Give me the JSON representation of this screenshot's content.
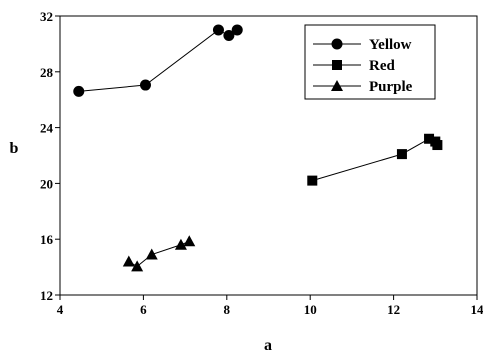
{
  "chart_data": {
    "type": "scatter",
    "title": "",
    "xlabel": "a",
    "ylabel": "b",
    "xlim": [
      4,
      14
    ],
    "ylim": [
      12,
      32
    ],
    "xticks": [
      4,
      6,
      8,
      10,
      12,
      14
    ],
    "yticks": [
      12,
      16,
      20,
      24,
      28,
      32
    ],
    "grid": false,
    "legend_position": "top-right",
    "series": [
      {
        "name": "Yellow",
        "marker": "circle",
        "color": "#000000",
        "points": [
          {
            "x": 4.45,
            "y": 26.6
          },
          {
            "x": 6.05,
            "y": 27.05
          },
          {
            "x": 7.8,
            "y": 31.0
          },
          {
            "x": 8.05,
            "y": 30.6
          },
          {
            "x": 8.25,
            "y": 31.0
          }
        ]
      },
      {
        "name": "Red",
        "marker": "square",
        "color": "#000000",
        "points": [
          {
            "x": 10.05,
            "y": 20.2
          },
          {
            "x": 12.2,
            "y": 22.1
          },
          {
            "x": 12.85,
            "y": 23.2
          },
          {
            "x": 13.0,
            "y": 23.0
          },
          {
            "x": 13.05,
            "y": 22.75
          }
        ]
      },
      {
        "name": "Purple",
        "marker": "triangle",
        "color": "#000000",
        "points": [
          {
            "x": 5.65,
            "y": 14.4
          },
          {
            "x": 5.85,
            "y": 14.05
          },
          {
            "x": 6.2,
            "y": 14.9
          },
          {
            "x": 6.9,
            "y": 15.6
          },
          {
            "x": 7.1,
            "y": 15.85
          }
        ]
      }
    ]
  }
}
